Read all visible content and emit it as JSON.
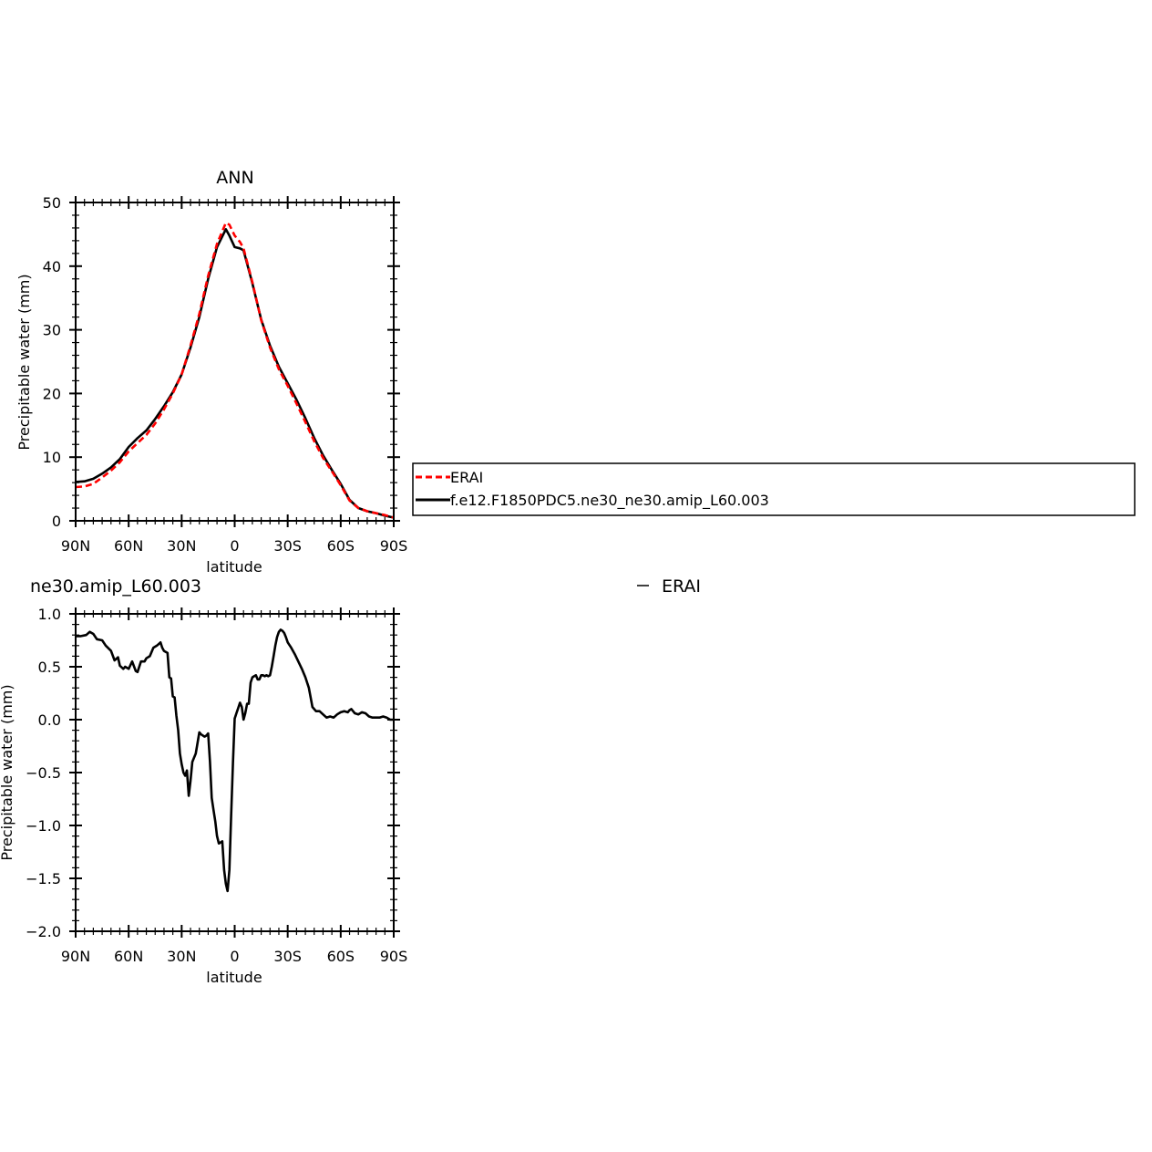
{
  "chart_data": [
    {
      "type": "line",
      "title": "ANN",
      "xlabel": "latitude",
      "ylabel": "Precipitable water (mm)",
      "xlim": [
        90,
        -90
      ],
      "ylim": [
        0,
        50
      ],
      "xticks": [
        {
          "value": 90,
          "label": "90N"
        },
        {
          "value": 60,
          "label": "60N"
        },
        {
          "value": 30,
          "label": "30N"
        },
        {
          "value": 0,
          "label": "0"
        },
        {
          "value": -30,
          "label": "30S"
        },
        {
          "value": -60,
          "label": "60S"
        },
        {
          "value": -90,
          "label": "90S"
        }
      ],
      "yticks": [
        {
          "value": 0,
          "label": "0"
        },
        {
          "value": 10,
          "label": "10"
        },
        {
          "value": 20,
          "label": "20"
        },
        {
          "value": 30,
          "label": "30"
        },
        {
          "value": 40,
          "label": "40"
        },
        {
          "value": 50,
          "label": "50"
        }
      ],
      "legend": {
        "placement": "right, outside plot"
      },
      "series": [
        {
          "name": "ERAI",
          "color": "#ff0000",
          "style": "dashed",
          "x": [
            90,
            85,
            80,
            75,
            70,
            65,
            60,
            55,
            50,
            45,
            40,
            35,
            30,
            25,
            20,
            15,
            10,
            5,
            3,
            0,
            -3,
            -5,
            -10,
            -15,
            -20,
            -25,
            -30,
            -35,
            -40,
            -45,
            -50,
            -55,
            -60,
            -65,
            -70,
            -75,
            -80,
            -85,
            -90
          ],
          "y": [
            5.3,
            5.4,
            5.8,
            6.8,
            7.9,
            9.2,
            10.9,
            12.2,
            13.5,
            15.3,
            17.5,
            20.0,
            23.0,
            27.5,
            32.5,
            38.5,
            43.5,
            46.8,
            46.5,
            44.8,
            43.8,
            42.8,
            37.5,
            31.5,
            27.2,
            23.8,
            21.2,
            18.4,
            15.5,
            12.5,
            9.9,
            7.8,
            5.6,
            3.2,
            2.0,
            1.5,
            1.2,
            0.9,
            0.5
          ]
        },
        {
          "name": "f.e12.F1850PDC5.ne30_ne30.amip_L60.003",
          "color": "#000000",
          "style": "solid",
          "x": [
            90,
            85,
            80,
            75,
            70,
            65,
            60,
            55,
            50,
            45,
            40,
            35,
            30,
            25,
            20,
            15,
            10,
            5,
            3,
            0,
            -3,
            -5,
            -10,
            -15,
            -20,
            -25,
            -30,
            -35,
            -40,
            -45,
            -50,
            -55,
            -60,
            -65,
            -70,
            -75,
            -80,
            -85,
            -90
          ],
          "y": [
            6.1,
            6.2,
            6.6,
            7.4,
            8.4,
            9.7,
            11.6,
            13.0,
            14.2,
            16.0,
            18.0,
            20.2,
            23.0,
            27.2,
            32.0,
            38.0,
            43.0,
            45.8,
            44.8,
            43.0,
            42.8,
            42.5,
            37.3,
            31.6,
            27.5,
            24.2,
            21.6,
            19.0,
            16.1,
            13.0,
            10.3,
            8.0,
            5.8,
            3.3,
            2.0,
            1.5,
            1.2,
            0.8,
            0.5
          ]
        }
      ]
    },
    {
      "type": "line",
      "title": "ne30.amip_L60.003",
      "title_suffix": "ERAI",
      "xlabel": "latitude",
      "ylabel": "Precipitable water (mm)",
      "xlim": [
        90,
        -90
      ],
      "ylim": [
        -2.0,
        1.0
      ],
      "xticks": [
        {
          "value": 90,
          "label": "90N"
        },
        {
          "value": 60,
          "label": "60N"
        },
        {
          "value": 30,
          "label": "30N"
        },
        {
          "value": 0,
          "label": "0"
        },
        {
          "value": -30,
          "label": "30S"
        },
        {
          "value": -60,
          "label": "60S"
        },
        {
          "value": -90,
          "label": "90S"
        }
      ],
      "yticks": [
        {
          "value": 1.0,
          "label": "1.0"
        },
        {
          "value": 0.5,
          "label": "0.5"
        },
        {
          "value": 0.0,
          "label": "0.0"
        },
        {
          "value": -0.5,
          "label": "−0.5"
        },
        {
          "value": -1.0,
          "label": "−1.0"
        },
        {
          "value": -1.5,
          "label": "−1.5"
        },
        {
          "value": -2.0,
          "label": "−2.0"
        }
      ],
      "series": [
        {
          "color": "#000000",
          "style": "solid",
          "x": [
            90,
            87,
            84,
            82,
            80,
            78,
            75,
            73,
            70,
            68,
            66,
            65,
            63,
            62,
            60,
            58,
            56,
            55,
            53,
            51,
            50,
            48,
            46,
            44,
            42,
            41,
            40,
            38,
            37,
            36,
            35,
            34,
            33,
            32,
            31,
            30,
            29,
            28,
            27,
            26,
            25,
            24,
            22,
            20,
            19,
            17,
            16,
            15,
            14,
            13,
            12,
            11,
            10,
            9,
            8,
            7,
            6,
            5,
            4,
            3,
            2,
            1,
            0,
            -1,
            -2,
            -3,
            -4,
            -5,
            -6,
            -7,
            -8,
            -9,
            -10,
            -11,
            -12,
            -13,
            -14,
            -15,
            -16,
            -17,
            -18,
            -19,
            -20,
            -21,
            -22,
            -23,
            -24,
            -25,
            -26,
            -27,
            -28,
            -29,
            -30,
            -32,
            -34,
            -36,
            -38,
            -40,
            -42,
            -44,
            -46,
            -48,
            -50,
            -52,
            -54,
            -56,
            -58,
            -60,
            -62,
            -64,
            -65,
            -66,
            -67,
            -68,
            -70,
            -72,
            -74,
            -76,
            -78,
            -80,
            -82,
            -84,
            -86,
            -88,
            -90
          ],
          "y": [
            0.79,
            0.79,
            0.8,
            0.83,
            0.81,
            0.76,
            0.75,
            0.7,
            0.65,
            0.56,
            0.59,
            0.51,
            0.48,
            0.5,
            0.48,
            0.55,
            0.46,
            0.45,
            0.55,
            0.55,
            0.58,
            0.6,
            0.68,
            0.7,
            0.73,
            0.68,
            0.65,
            0.63,
            0.4,
            0.39,
            0.22,
            0.21,
            0.04,
            -0.1,
            -0.32,
            -0.42,
            -0.5,
            -0.53,
            -0.48,
            -0.72,
            -0.58,
            -0.4,
            -0.32,
            -0.12,
            -0.14,
            -0.16,
            -0.15,
            -0.13,
            -0.4,
            -0.74,
            -0.85,
            -0.96,
            -1.1,
            -1.17,
            -1.16,
            -1.15,
            -1.42,
            -1.55,
            -1.62,
            -1.42,
            -0.91,
            -0.41,
            0.01,
            0.06,
            0.11,
            0.16,
            0.12,
            0.0,
            0.06,
            0.15,
            0.15,
            0.35,
            0.4,
            0.41,
            0.42,
            0.38,
            0.38,
            0.42,
            0.42,
            0.41,
            0.42,
            0.41,
            0.42,
            0.5,
            0.6,
            0.7,
            0.78,
            0.83,
            0.85,
            0.84,
            0.82,
            0.78,
            0.73,
            0.68,
            0.62,
            0.55,
            0.48,
            0.4,
            0.3,
            0.12,
            0.08,
            0.08,
            0.05,
            0.02,
            0.03,
            0.02,
            0.05,
            0.07,
            0.08,
            0.07,
            0.09,
            0.1,
            0.08,
            0.06,
            0.05,
            0.07,
            0.06,
            0.03,
            0.02,
            0.02,
            0.02,
            0.03,
            0.02,
            0.0,
            0.0
          ]
        }
      ]
    }
  ],
  "colors": {
    "erai": "#ff0000",
    "model": "#000000",
    "axis": "#000000"
  }
}
